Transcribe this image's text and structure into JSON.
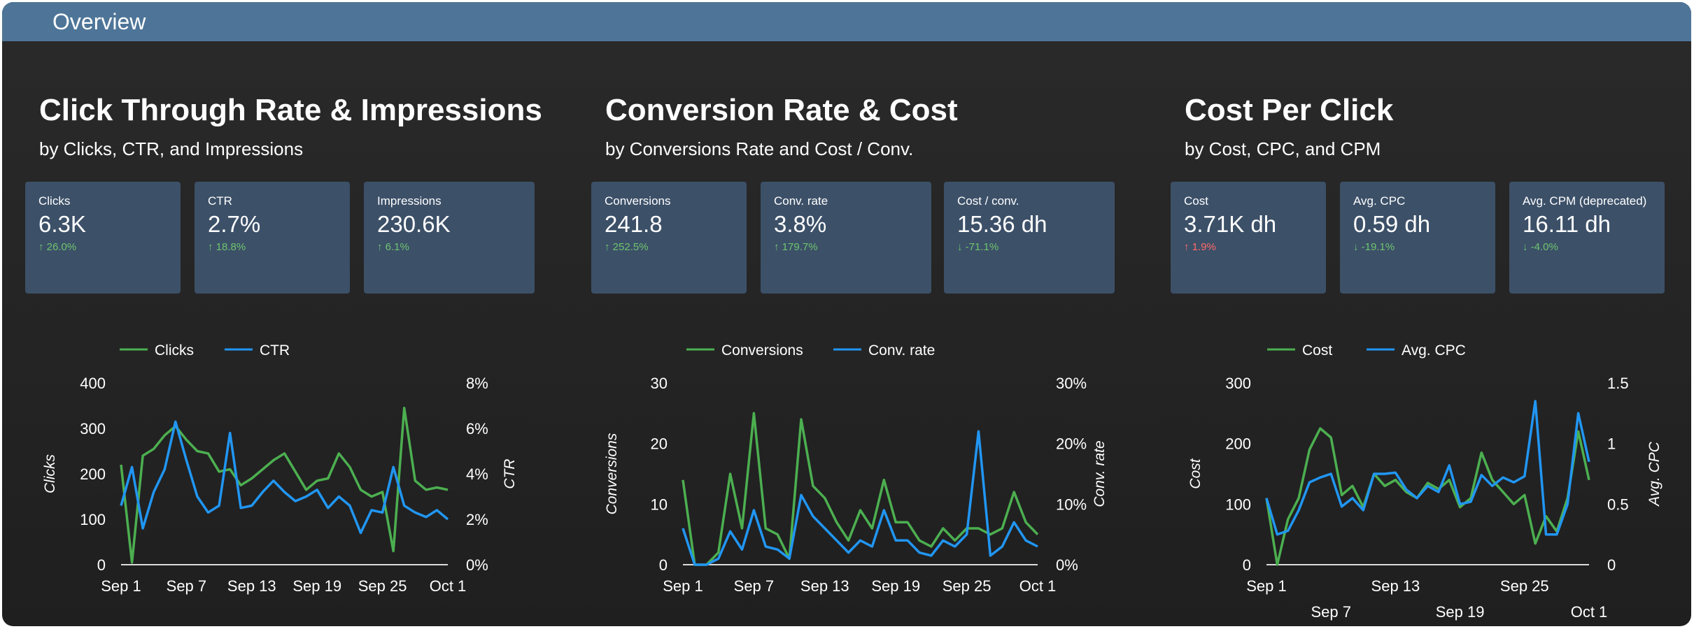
{
  "header": {
    "title": "Overview"
  },
  "colors": {
    "series1": "#4caf50",
    "series2": "#2196f3",
    "card_bg": "#3c5068",
    "header_bg": "#4e7598"
  },
  "sections": [
    {
      "title": "Click Through Rate & Impressions",
      "subtitle": "by Clicks, CTR, and Impressions",
      "cards": [
        {
          "label": "Clicks",
          "value": "6.3K",
          "delta": "↑ 26.0%",
          "delta_color": "green"
        },
        {
          "label": "CTR",
          "value": "2.7%",
          "delta": "↑ 18.8%",
          "delta_color": "green"
        },
        {
          "label": "Impressions",
          "value": "230.6K",
          "delta": "↑ 6.1%",
          "delta_color": "green"
        }
      ]
    },
    {
      "title": "Conversion Rate & Cost",
      "subtitle": "by Conversions Rate and Cost / Conv.",
      "cards": [
        {
          "label": "Conversions",
          "value": "241.8",
          "delta": "↑ 252.5%",
          "delta_color": "green"
        },
        {
          "label": "Conv. rate",
          "value": "3.8%",
          "delta": "↑ 179.7%",
          "delta_color": "green"
        },
        {
          "label": "Cost / conv.",
          "value": "15.36 dh",
          "delta": "↓ -71.1%",
          "delta_color": "green"
        }
      ]
    },
    {
      "title": "Cost Per Click",
      "subtitle": "by Cost, CPC, and CPM",
      "cards": [
        {
          "label": "Cost",
          "value": "3.71K dh",
          "delta": "↑ 1.9%",
          "delta_color": "red"
        },
        {
          "label": "Avg. CPC",
          "value": "0.59 dh",
          "delta": "↓ -19.1%",
          "delta_color": "green"
        },
        {
          "label": "Avg. CPM (deprecated)",
          "value": "16.11 dh",
          "delta": "↓ -4.0%",
          "delta_color": "green"
        }
      ]
    }
  ],
  "chart_data": [
    {
      "type": "line",
      "x": [
        "Sep 1",
        "Sep 2",
        "Sep 3",
        "Sep 4",
        "Sep 5",
        "Sep 6",
        "Sep 7",
        "Sep 8",
        "Sep 9",
        "Sep 10",
        "Sep 11",
        "Sep 12",
        "Sep 13",
        "Sep 14",
        "Sep 15",
        "Sep 16",
        "Sep 17",
        "Sep 18",
        "Sep 19",
        "Sep 20",
        "Sep 21",
        "Sep 22",
        "Sep 23",
        "Sep 24",
        "Sep 25",
        "Sep 26",
        "Sep 27",
        "Sep 28",
        "Sep 29",
        "Sep 30",
        "Oct 1"
      ],
      "x_ticks": [
        "Sep 1",
        "Sep 7",
        "Sep 13",
        "Sep 19",
        "Sep 25",
        "Oct 1"
      ],
      "x_tick_indices": [
        0,
        6,
        12,
        18,
        24,
        30
      ],
      "series": [
        {
          "name": "Clicks",
          "axis": "left",
          "values": [
            220,
            5,
            240,
            255,
            285,
            305,
            275,
            250,
            245,
            205,
            210,
            175,
            190,
            210,
            230,
            245,
            205,
            165,
            185,
            190,
            245,
            215,
            165,
            150,
            160,
            30,
            345,
            185,
            165,
            170,
            165
          ]
        },
        {
          "name": "CTR",
          "axis": "right",
          "values": [
            2.6,
            4.3,
            1.6,
            3.2,
            4.2,
            6.3,
            4.6,
            3.0,
            2.3,
            2.6,
            5.8,
            2.5,
            2.6,
            3.2,
            3.7,
            3.2,
            2.8,
            3.0,
            3.3,
            2.5,
            3.0,
            2.6,
            1.4,
            2.4,
            2.3,
            4.3,
            2.6,
            2.3,
            2.1,
            2.4,
            2.0
          ]
        }
      ],
      "ylabel": "Clicks",
      "ylabel_right": "CTR",
      "ylim": [
        0,
        400
      ],
      "yticks": [
        "0",
        "100",
        "200",
        "300",
        "400"
      ],
      "ylim_right": [
        0,
        8
      ],
      "yticks_right": [
        "0%",
        "2%",
        "4%",
        "6%",
        "8%"
      ],
      "legend": "top"
    },
    {
      "type": "line",
      "x": [
        "Sep 1",
        "Sep 2",
        "Sep 3",
        "Sep 4",
        "Sep 5",
        "Sep 6",
        "Sep 7",
        "Sep 8",
        "Sep 9",
        "Sep 10",
        "Sep 11",
        "Sep 12",
        "Sep 13",
        "Sep 14",
        "Sep 15",
        "Sep 16",
        "Sep 17",
        "Sep 18",
        "Sep 19",
        "Sep 20",
        "Sep 21",
        "Sep 22",
        "Sep 23",
        "Sep 24",
        "Sep 25",
        "Sep 26",
        "Sep 27",
        "Sep 28",
        "Sep 29",
        "Sep 30",
        "Oct 1"
      ],
      "x_ticks": [
        "Sep 1",
        "Sep 7",
        "Sep 13",
        "Sep 19",
        "Sep 25",
        "Oct 1"
      ],
      "x_tick_indices": [
        0,
        6,
        12,
        18,
        24,
        30
      ],
      "series": [
        {
          "name": "Conversions",
          "axis": "left",
          "values": [
            14,
            0,
            0,
            2,
            15,
            6,
            25,
            6,
            5,
            1,
            24,
            13,
            11,
            7,
            4,
            9,
            6,
            14,
            7,
            7,
            4,
            3,
            6,
            4,
            6,
            6,
            5,
            6,
            12,
            7,
            5
          ]
        },
        {
          "name": "Conv. rate",
          "axis": "right",
          "values": [
            6,
            0,
            0,
            1,
            5.5,
            2.5,
            9,
            3,
            2.5,
            1,
            11.5,
            8,
            6,
            4,
            2,
            4,
            3,
            9,
            4,
            4,
            2,
            1.5,
            4,
            3,
            5,
            22,
            1.5,
            3,
            7,
            4,
            3
          ]
        }
      ],
      "ylabel": "Conversions",
      "ylabel_right": "Conv. rate",
      "ylim": [
        0,
        30
      ],
      "yticks": [
        "0",
        "10",
        "20",
        "30"
      ],
      "ylim_right": [
        0,
        30
      ],
      "yticks_right": [
        "0%",
        "10%",
        "20%",
        "30%"
      ],
      "legend": "top"
    },
    {
      "type": "line",
      "x": [
        "Sep 1",
        "Sep 2",
        "Sep 3",
        "Sep 4",
        "Sep 5",
        "Sep 6",
        "Sep 7",
        "Sep 8",
        "Sep 9",
        "Sep 10",
        "Sep 11",
        "Sep 12",
        "Sep 13",
        "Sep 14",
        "Sep 15",
        "Sep 16",
        "Sep 17",
        "Sep 18",
        "Sep 19",
        "Sep 20",
        "Sep 21",
        "Sep 22",
        "Sep 23",
        "Sep 24",
        "Sep 25",
        "Sep 26",
        "Sep 27",
        "Sep 28",
        "Sep 29",
        "Sep 30",
        "Oct 1"
      ],
      "x_ticks": [
        "Sep 1",
        "Sep 7",
        "Sep 13",
        "Sep 19",
        "Sep 25",
        "Oct 1"
      ],
      "x_tick_indices": [
        0,
        6,
        12,
        18,
        24,
        30
      ],
      "series": [
        {
          "name": "Cost",
          "axis": "left",
          "values": [
            110,
            0,
            75,
            110,
            190,
            225,
            210,
            115,
            130,
            95,
            150,
            130,
            140,
            120,
            110,
            135,
            125,
            140,
            95,
            110,
            185,
            140,
            120,
            100,
            115,
            35,
            80,
            55,
            110,
            220,
            140
          ]
        },
        {
          "name": "Avg. CPC",
          "axis": "right",
          "values": [
            0.55,
            0.25,
            0.28,
            0.45,
            0.68,
            0.72,
            0.75,
            0.48,
            0.55,
            0.45,
            0.75,
            0.75,
            0.76,
            0.62,
            0.55,
            0.65,
            0.6,
            0.82,
            0.5,
            0.52,
            0.74,
            0.65,
            0.72,
            0.68,
            0.73,
            1.35,
            0.25,
            0.25,
            0.5,
            1.25,
            0.85
          ]
        }
      ],
      "ylabel": "Cost",
      "ylabel_right": "Avg. CPC",
      "ylim": [
        0,
        300
      ],
      "yticks": [
        "0",
        "100",
        "200",
        "300"
      ],
      "ylim_right": [
        0,
        1.5
      ],
      "yticks_right": [
        "0",
        "0.5",
        "1",
        "1.5"
      ],
      "legend": "top"
    }
  ]
}
